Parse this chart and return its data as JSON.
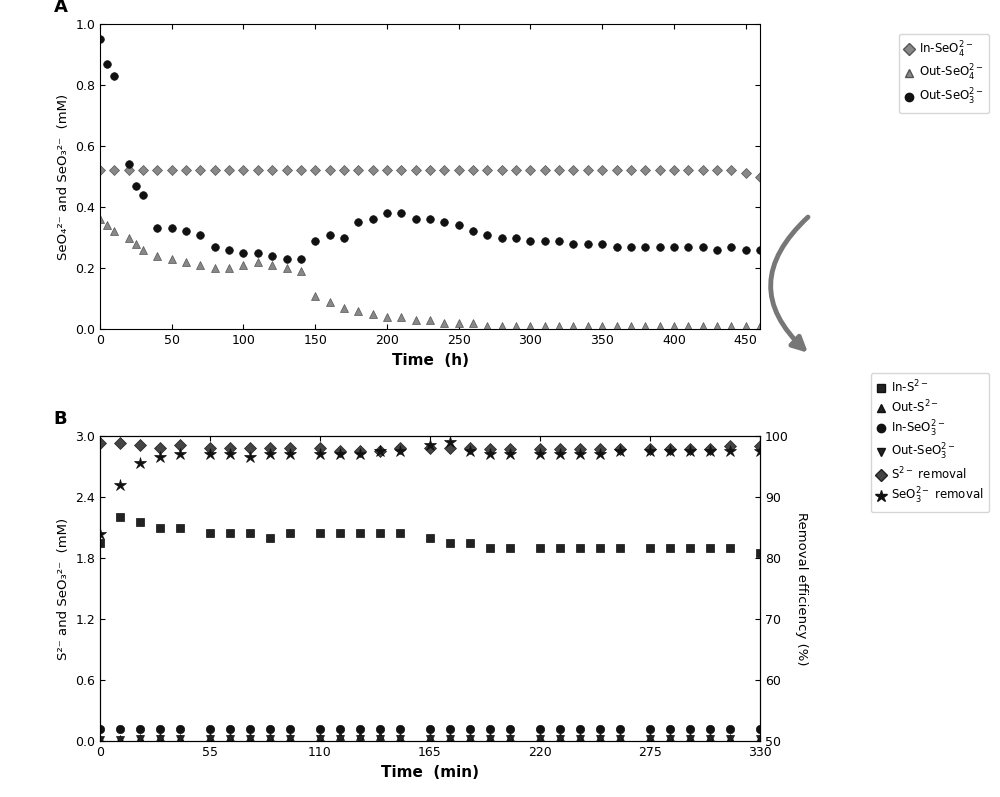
{
  "panel_A": {
    "xlabel": "Time  (h)",
    "ylabel": "SeO₄²⁻ and SeO₃²⁻  (mM)",
    "xlim": [
      0,
      460
    ],
    "ylim": [
      0,
      1.0
    ],
    "yticks": [
      0.0,
      0.2,
      0.4,
      0.6,
      0.8,
      1.0
    ],
    "xticks": [
      0,
      50,
      100,
      150,
      200,
      250,
      300,
      350,
      400,
      450
    ],
    "in_SeO4_x": [
      0,
      10,
      20,
      30,
      40,
      50,
      60,
      70,
      80,
      90,
      100,
      110,
      120,
      130,
      140,
      150,
      160,
      170,
      180,
      190,
      200,
      210,
      220,
      230,
      240,
      250,
      260,
      270,
      280,
      290,
      300,
      310,
      320,
      330,
      340,
      350,
      360,
      370,
      380,
      390,
      400,
      410,
      420,
      430,
      440,
      450,
      460
    ],
    "in_SeO4_y": [
      0.52,
      0.52,
      0.52,
      0.52,
      0.52,
      0.52,
      0.52,
      0.52,
      0.52,
      0.52,
      0.52,
      0.52,
      0.52,
      0.52,
      0.52,
      0.52,
      0.52,
      0.52,
      0.52,
      0.52,
      0.52,
      0.52,
      0.52,
      0.52,
      0.52,
      0.52,
      0.52,
      0.52,
      0.52,
      0.52,
      0.52,
      0.52,
      0.52,
      0.52,
      0.52,
      0.52,
      0.52,
      0.52,
      0.52,
      0.52,
      0.52,
      0.52,
      0.52,
      0.52,
      0.52,
      0.51,
      0.5
    ],
    "out_SeO4_x": [
      0,
      5,
      10,
      20,
      25,
      30,
      40,
      50,
      60,
      70,
      80,
      90,
      100,
      110,
      120,
      130,
      140,
      150,
      160,
      170,
      180,
      190,
      200,
      210,
      220,
      230,
      240,
      250,
      260,
      270,
      280,
      290,
      300,
      310,
      320,
      330,
      340,
      350,
      360,
      370,
      380,
      390,
      400,
      410,
      420,
      430,
      440,
      450,
      460
    ],
    "out_SeO4_y": [
      0.36,
      0.34,
      0.32,
      0.3,
      0.28,
      0.26,
      0.24,
      0.23,
      0.22,
      0.21,
      0.2,
      0.2,
      0.21,
      0.22,
      0.21,
      0.2,
      0.19,
      0.11,
      0.09,
      0.07,
      0.06,
      0.05,
      0.04,
      0.04,
      0.03,
      0.03,
      0.02,
      0.02,
      0.02,
      0.01,
      0.01,
      0.01,
      0.01,
      0.01,
      0.01,
      0.01,
      0.01,
      0.01,
      0.01,
      0.01,
      0.01,
      0.01,
      0.01,
      0.01,
      0.01,
      0.01,
      0.01,
      0.01,
      0.01
    ],
    "out_SeO3_x": [
      0,
      5,
      10,
      20,
      25,
      30,
      40,
      50,
      60,
      70,
      80,
      90,
      100,
      110,
      120,
      130,
      140,
      150,
      160,
      170,
      180,
      190,
      200,
      210,
      220,
      230,
      240,
      250,
      260,
      270,
      280,
      290,
      300,
      310,
      320,
      330,
      340,
      350,
      360,
      370,
      380,
      390,
      400,
      410,
      420,
      430,
      440,
      450,
      460
    ],
    "out_SeO3_y": [
      0.95,
      0.87,
      0.83,
      0.54,
      0.47,
      0.44,
      0.33,
      0.33,
      0.32,
      0.31,
      0.27,
      0.26,
      0.25,
      0.25,
      0.24,
      0.23,
      0.23,
      0.29,
      0.31,
      0.3,
      0.35,
      0.36,
      0.38,
      0.38,
      0.36,
      0.36,
      0.35,
      0.34,
      0.32,
      0.31,
      0.3,
      0.3,
      0.29,
      0.29,
      0.29,
      0.28,
      0.28,
      0.28,
      0.27,
      0.27,
      0.27,
      0.27,
      0.27,
      0.27,
      0.27,
      0.26,
      0.27,
      0.26,
      0.26
    ]
  },
  "panel_B": {
    "xlabel": "Time  (min)",
    "ylabel_left": "S²⁻ and SeO₃²⁻  (mM)",
    "ylabel_right": "Removal efficiency (%)",
    "xlim": [
      0,
      330
    ],
    "ylim_left": [
      0,
      3.0
    ],
    "ylim_right": [
      50,
      100
    ],
    "yticks_left": [
      0.0,
      0.6,
      1.2,
      1.8,
      2.4,
      3.0
    ],
    "yticks_right": [
      50,
      60,
      70,
      80,
      90,
      100
    ],
    "xticks": [
      0,
      55,
      110,
      165,
      220,
      275,
      330
    ],
    "in_S2_x": [
      0,
      10,
      20,
      30,
      40,
      55,
      65,
      75,
      85,
      95,
      110,
      120,
      130,
      140,
      150,
      165,
      175,
      185,
      195,
      205,
      220,
      230,
      240,
      250,
      260,
      275,
      285,
      295,
      305,
      315,
      330
    ],
    "in_S2_y": [
      1.95,
      2.2,
      2.15,
      2.1,
      2.1,
      2.05,
      2.05,
      2.05,
      2.0,
      2.05,
      2.05,
      2.05,
      2.05,
      2.05,
      2.05,
      2.0,
      1.95,
      1.95,
      1.9,
      1.9,
      1.9,
      1.9,
      1.9,
      1.9,
      1.9,
      1.9,
      1.9,
      1.9,
      1.9,
      1.9,
      1.85
    ],
    "out_S2_x": [
      0,
      10,
      20,
      30,
      40,
      55,
      65,
      75,
      85,
      95,
      110,
      120,
      130,
      140,
      150,
      165,
      175,
      185,
      195,
      205,
      220,
      230,
      240,
      250,
      260,
      275,
      285,
      295,
      305,
      315,
      330
    ],
    "out_S2_y": [
      0.02,
      0.02,
      0.03,
      0.04,
      0.03,
      0.04,
      0.04,
      0.04,
      0.04,
      0.04,
      0.04,
      0.05,
      0.05,
      0.05,
      0.04,
      0.04,
      0.04,
      0.04,
      0.04,
      0.04,
      0.04,
      0.04,
      0.04,
      0.04,
      0.04,
      0.04,
      0.04,
      0.04,
      0.04,
      0.03,
      0.03
    ],
    "in_SeO3_x": [
      0,
      10,
      20,
      30,
      40,
      55,
      65,
      75,
      85,
      95,
      110,
      120,
      130,
      140,
      150,
      165,
      175,
      185,
      195,
      205,
      220,
      230,
      240,
      250,
      260,
      275,
      285,
      295,
      305,
      315,
      330
    ],
    "in_SeO3_y": [
      0.12,
      0.12,
      0.12,
      0.12,
      0.12,
      0.12,
      0.12,
      0.12,
      0.12,
      0.12,
      0.12,
      0.12,
      0.12,
      0.12,
      0.12,
      0.12,
      0.12,
      0.12,
      0.12,
      0.12,
      0.12,
      0.12,
      0.12,
      0.12,
      0.12,
      0.12,
      0.12,
      0.12,
      0.12,
      0.12,
      0.12
    ],
    "out_SeO3_x": [
      0,
      10,
      20,
      30,
      40,
      55,
      65,
      75,
      85,
      95,
      110,
      120,
      130,
      140,
      150,
      165,
      175,
      185,
      195,
      205,
      220,
      230,
      240,
      250,
      260,
      275,
      285,
      295,
      305,
      315,
      330
    ],
    "out_SeO3_y": [
      0.01,
      0.01,
      0.02,
      0.02,
      0.02,
      0.02,
      0.02,
      0.02,
      0.02,
      0.02,
      0.02,
      0.02,
      0.02,
      0.02,
      0.02,
      0.02,
      0.02,
      0.02,
      0.02,
      0.02,
      0.02,
      0.02,
      0.02,
      0.02,
      0.02,
      0.02,
      0.02,
      0.02,
      0.02,
      0.02,
      0.02
    ],
    "S2_removal_x": [
      0,
      10,
      20,
      30,
      40,
      55,
      65,
      75,
      85,
      95,
      110,
      120,
      130,
      140,
      150,
      165,
      175,
      185,
      195,
      205,
      220,
      230,
      240,
      250,
      260,
      275,
      285,
      295,
      305,
      315,
      330
    ],
    "S2_removal_y": [
      98.9,
      98.9,
      98.6,
      98.0,
      98.5,
      98.0,
      98.0,
      98.0,
      98.0,
      98.0,
      98.1,
      97.5,
      97.5,
      97.5,
      98.0,
      98.0,
      98.0,
      98.0,
      97.8,
      97.8,
      97.8,
      97.8,
      97.8,
      97.8,
      97.8,
      97.8,
      97.8,
      97.8,
      97.8,
      98.3,
      98.3
    ],
    "SeO3_removal_x": [
      0,
      10,
      20,
      30,
      40,
      55,
      65,
      75,
      85,
      95,
      110,
      120,
      130,
      140,
      150,
      165,
      175,
      185,
      195,
      205,
      220,
      230,
      240,
      250,
      260,
      275,
      285,
      295,
      305,
      315,
      330
    ],
    "SeO3_removal_y": [
      84.0,
      92.0,
      95.5,
      96.5,
      97.0,
      97.0,
      97.0,
      96.5,
      97.0,
      97.0,
      97.0,
      97.0,
      97.0,
      97.5,
      97.5,
      98.5,
      99.0,
      97.5,
      97.0,
      97.0,
      97.0,
      97.0,
      97.0,
      97.0,
      97.5,
      97.5,
      97.5,
      97.5,
      97.5,
      97.5,
      97.5
    ]
  },
  "arrow_color": "#777777",
  "label_color": "#000000",
  "legend_A_labels": [
    "In-SeO$_4^{2-}$",
    "Out-SeO$_4^{2-}$",
    "Out-SeO$_3^{2-}$"
  ],
  "legend_B_labels": [
    "In-S$^{2-}$",
    "Out-S$^{2-}$",
    "In-SeO$_3^{2-}$",
    "Out-SeO$_3^{2-}$",
    "S$^{2-}$ removal",
    "SeO$_3^{2-}$ removal"
  ]
}
